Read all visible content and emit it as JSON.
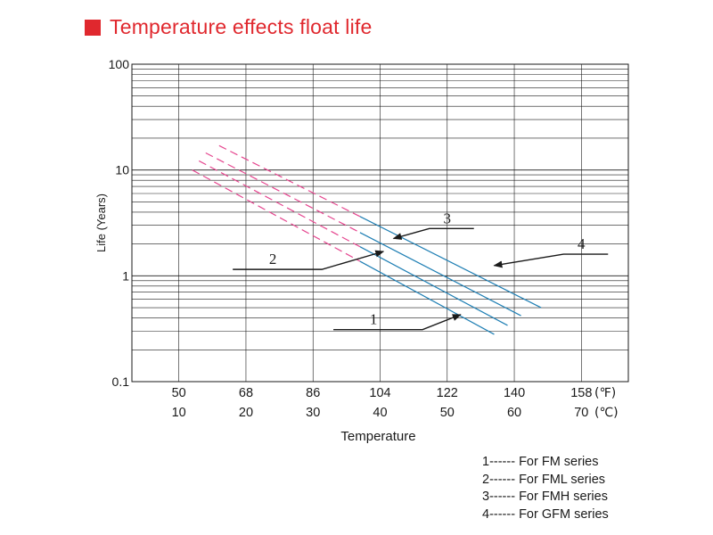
{
  "title": "Temperature effects float life",
  "colors": {
    "accent": "#e0282e",
    "pink": "#e5468f",
    "blue": "#1f7fb4",
    "grid": "#1a1a1a"
  },
  "chart_data": {
    "type": "line",
    "title": "Temperature effects float life",
    "xlabel": "Temperature",
    "ylabel": "Life (Years)",
    "y_scale": "log",
    "ylim": [
      0.1,
      100
    ],
    "xlim_celsius": [
      3,
      77
    ],
    "y_ticks": [
      {
        "value": 100,
        "label": "100"
      },
      {
        "value": 10,
        "label": "10"
      },
      {
        "value": 1,
        "label": "1"
      },
      {
        "value": 0.1,
        "label": "0.1"
      }
    ],
    "x_ticks_fahrenheit": [
      "50",
      "68",
      "86",
      "104",
      "122",
      "140",
      "158"
    ],
    "x_ticks_celsius": [
      "10",
      "20",
      "30",
      "40",
      "50",
      "60",
      "70"
    ],
    "x_tick_celsius_values": [
      10,
      20,
      30,
      40,
      50,
      60,
      70
    ],
    "unit_fahrenheit": "(℉)",
    "unit_celsius": "(℃)",
    "dashed_until_celsius": 37,
    "series": [
      {
        "name": "1",
        "x": [
          12,
          57
        ],
        "y": [
          10.0,
          0.28
        ]
      },
      {
        "name": "2",
        "x": [
          13,
          59
        ],
        "y": [
          12.2,
          0.34
        ]
      },
      {
        "name": "3",
        "x": [
          14,
          61
        ],
        "y": [
          14.5,
          0.42
        ]
      },
      {
        "name": "4",
        "x": [
          16,
          64
        ],
        "y": [
          17.0,
          0.5
        ]
      }
    ],
    "annotations": [
      {
        "label": "1",
        "text_x": 43,
        "text_y": 0.31,
        "tip_x": 52,
        "tip_y": 0.43
      },
      {
        "label": "2",
        "text_x": 28,
        "text_y": 1.15,
        "tip_x": 40.5,
        "tip_y": 1.7
      },
      {
        "label": "3",
        "text_x": 48,
        "text_y": 2.8,
        "tip_x": 42,
        "tip_y": 2.25
      },
      {
        "label": "4",
        "text_x": 68,
        "text_y": 1.6,
        "tip_x": 57,
        "tip_y": 1.25
      }
    ]
  },
  "legend": [
    "1------ For  FM  series",
    "2------ For FML series",
    "3------ For FMH series",
    "4------ For GFM series"
  ]
}
